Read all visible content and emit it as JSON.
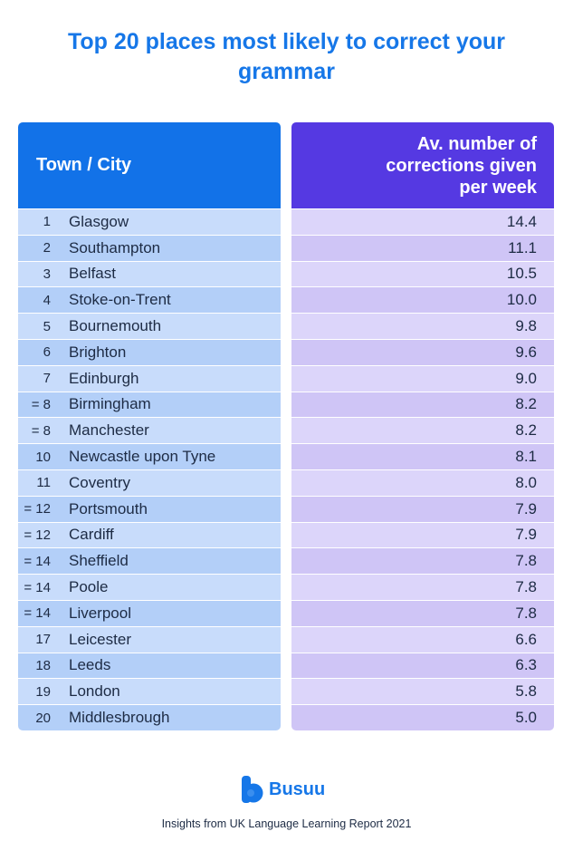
{
  "title": "Top 20 places most likely to correct your grammar",
  "brand": "Busuu",
  "footer": "Insights from UK Language Learning Report 2021",
  "icons": {
    "logo": "busuu-logo-icon"
  },
  "colors": {
    "title": "#1677e8",
    "left_header": "#1272e8",
    "right_header": "#5539e2",
    "left_row_light": "#c8dcfb",
    "left_row_dark": "#b3cff8",
    "right_row_light": "#dcd5fa",
    "right_row_dark": "#cfc5f6"
  },
  "chart_data": {
    "type": "table",
    "title": "Top 20 places most likely to correct your grammar",
    "columns": [
      "Town / City",
      "Av. number of corrections given per week"
    ],
    "rows": [
      {
        "rank": "1",
        "town": "Glasgow",
        "value": "14.4"
      },
      {
        "rank": "2",
        "town": "Southampton",
        "value": "11.1"
      },
      {
        "rank": "3",
        "town": "Belfast",
        "value": "10.5"
      },
      {
        "rank": "4",
        "town": "Stoke-on-Trent",
        "value": "10.0"
      },
      {
        "rank": "5",
        "town": "Bournemouth",
        "value": "9.8"
      },
      {
        "rank": "6",
        "town": "Brighton",
        "value": "9.6"
      },
      {
        "rank": "7",
        "town": "Edinburgh",
        "value": "9.0"
      },
      {
        "rank": "= 8",
        "town": "Birmingham",
        "value": "8.2"
      },
      {
        "rank": "= 8",
        "town": "Manchester",
        "value": "8.2"
      },
      {
        "rank": "10",
        "town": "Newcastle upon Tyne",
        "value": "8.1"
      },
      {
        "rank": "11",
        "town": "Coventry",
        "value": "8.0"
      },
      {
        "rank": "= 12",
        "town": "Portsmouth",
        "value": "7.9"
      },
      {
        "rank": "= 12",
        "town": "Cardiff",
        "value": "7.9"
      },
      {
        "rank": "= 14",
        "town": "Sheffield",
        "value": "7.8"
      },
      {
        "rank": "= 14",
        "town": "Poole",
        "value": "7.8"
      },
      {
        "rank": "= 14",
        "town": "Liverpool",
        "value": "7.8"
      },
      {
        "rank": "17",
        "town": "Leicester",
        "value": "6.6"
      },
      {
        "rank": "18",
        "town": "Leeds",
        "value": "6.3"
      },
      {
        "rank": "19",
        "town": "London",
        "value": "5.8"
      },
      {
        "rank": "20",
        "town": "Middlesbrough",
        "value": "5.0"
      }
    ]
  }
}
